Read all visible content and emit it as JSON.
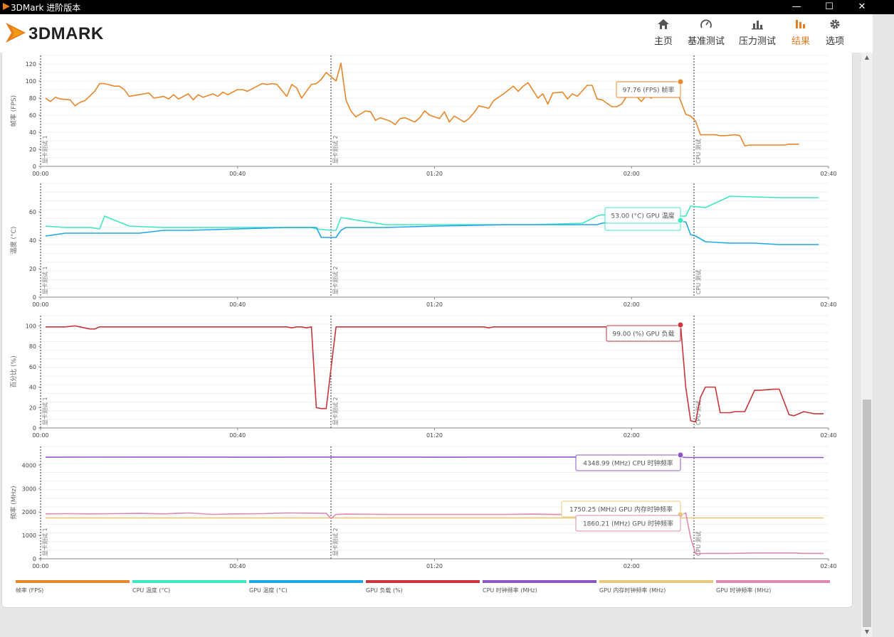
{
  "titlebar": {
    "title": "3DMark 进阶版本"
  },
  "logo": {
    "text": "3DMARK"
  },
  "nav": [
    {
      "label": "主页",
      "icon": "home-icon",
      "active": false
    },
    {
      "label": "基准测试",
      "icon": "gauge-icon",
      "active": false
    },
    {
      "label": "压力测试",
      "icon": "bar-chart-icon",
      "active": false
    },
    {
      "label": "结果",
      "icon": "results-icon",
      "active": true
    },
    {
      "label": "选项",
      "icon": "gear-icon",
      "active": false
    }
  ],
  "colors": {
    "accent": "#e67e22",
    "fps": "#e8862a",
    "cpu_temp": "#3ee8c0",
    "gpu_temp": "#1ea7e8",
    "gpu_load": "#c8353a",
    "cpu_clock": "#8e55c8",
    "gpu_mem_clock": "#e8c87a",
    "gpu_clock": "#e088b0"
  },
  "markers": [
    "显卡测试 1",
    "显卡测试 2",
    "CPU 测试"
  ],
  "x_ticks": [
    "00:00",
    "00:40",
    "01:20",
    "02:00",
    "02:40"
  ],
  "charts": [
    {
      "name": "fps",
      "ylabel": "帧率 (FPS)",
      "yticks": [
        "0",
        "20",
        "40",
        "60",
        "80",
        "100",
        "120"
      ],
      "tooltips": [
        {
          "text": "97.76 (FPS) 帧率"
        }
      ]
    },
    {
      "name": "temperature",
      "ylabel": "温度 (°C)",
      "yticks": [
        "0",
        "20",
        "40",
        "60"
      ],
      "tooltips": [
        {
          "text": "53.00 (°C) GPU 温度"
        }
      ]
    },
    {
      "name": "percent",
      "ylabel": "百分比 (%)",
      "yticks": [
        "0",
        "20",
        "40",
        "60",
        "80",
        "100"
      ],
      "tooltips": [
        {
          "text": "99.00 (%) GPU 负载"
        }
      ]
    },
    {
      "name": "frequency",
      "ylabel": "频率 (MHz)",
      "yticks": [
        "0",
        "1000",
        "2000",
        "3000",
        "4000"
      ],
      "tooltips": [
        {
          "text": "4348.99 (MHz) CPU 时钟频率"
        },
        {
          "text": "1750.25 (MHz) GPU 内存时钟频率"
        },
        {
          "text": "1860.21 (MHz) GPU 时钟频率"
        }
      ]
    }
  ],
  "chart_data": [
    {
      "type": "line",
      "x_unit": "seconds",
      "xlim": [
        0,
        160
      ],
      "ylabel": "帧率 (FPS)",
      "ylim": [
        0,
        130
      ],
      "series": [
        {
          "name": "帧率 (FPS)",
          "x": [
            1,
            2,
            3,
            4,
            6,
            7,
            8,
            9,
            11,
            12,
            13,
            15,
            16,
            17,
            18,
            20,
            21,
            22,
            23,
            25,
            26,
            27,
            28,
            30,
            31,
            32,
            33,
            35,
            36,
            37,
            38,
            40,
            41,
            42,
            43,
            45,
            46,
            47,
            48,
            50,
            51,
            52,
            53,
            55,
            56,
            57,
            58,
            60,
            61,
            62,
            63,
            64,
            66,
            67,
            68,
            69,
            71,
            72,
            73,
            74,
            76,
            77,
            78,
            79,
            81,
            82,
            83,
            84,
            86,
            87,
            88,
            89,
            91,
            92,
            93,
            94,
            96,
            97,
            98,
            99,
            101,
            102,
            103,
            104,
            106,
            107,
            108,
            109,
            111,
            112,
            113,
            114,
            116,
            117,
            118,
            119,
            121,
            122,
            123,
            124,
            126,
            127,
            128,
            129,
            131,
            132,
            133,
            134,
            136,
            137,
            138,
            139,
            141,
            142,
            143,
            144,
            146,
            147,
            148,
            149,
            151,
            152,
            153,
            154
          ],
          "y": [
            80,
            76,
            81,
            79,
            78,
            71,
            75,
            77,
            88,
            97,
            97,
            94,
            94,
            90,
            82,
            84,
            85,
            86,
            80,
            82,
            79,
            84,
            79,
            85,
            78,
            84,
            81,
            85,
            82,
            87,
            84,
            90,
            90,
            88,
            91,
            97,
            96,
            97,
            96,
            82,
            96,
            92,
            80,
            96,
            97,
            102,
            110,
            100,
            121,
            78,
            65,
            58,
            65,
            64,
            54,
            57,
            53,
            49,
            56,
            57,
            52,
            57,
            65,
            60,
            56,
            64,
            52,
            59,
            52,
            56,
            63,
            71,
            68,
            77,
            81,
            85,
            94,
            88,
            94,
            98,
            80,
            85,
            73,
            86,
            87,
            79,
            85,
            82,
            95,
            95,
            79,
            78,
            70,
            70,
            73,
            82,
            82,
            76,
            83,
            80,
            90,
            97.76,
            94,
            92,
            61,
            59,
            53,
            37,
            37,
            37,
            36,
            36,
            37,
            36,
            24,
            25,
            25,
            25,
            25,
            25,
            25,
            26,
            26,
            26
          ]
        }
      ]
    },
    {
      "type": "line",
      "x_unit": "seconds",
      "xlim": [
        0,
        160
      ],
      "ylabel": "温度 (°C)",
      "ylim": [
        0,
        80
      ],
      "series": [
        {
          "name": "CPU 温度 (°C)",
          "x": [
            1,
            5,
            10,
            12,
            13,
            18,
            25,
            40,
            55,
            56,
            59,
            60,
            61,
            70,
            80,
            90,
            93,
            94,
            96,
            100,
            110,
            113,
            114,
            116,
            120,
            130,
            131,
            132,
            135,
            140,
            150,
            158
          ],
          "y": [
            50,
            49,
            49,
            48,
            57,
            50,
            49,
            49,
            49,
            48,
            47,
            47,
            56,
            51,
            51,
            51,
            51,
            51,
            51,
            51,
            52,
            57,
            58,
            57,
            57,
            57,
            57,
            64,
            63,
            71,
            70,
            70
          ]
        },
        {
          "name": "GPU 温度 (°C)",
          "x": [
            1,
            5,
            10,
            12,
            20,
            25,
            30,
            40,
            50,
            56,
            57,
            59,
            60,
            61,
            62,
            70,
            80,
            95,
            100,
            108,
            113,
            114,
            116,
            120,
            125,
            128,
            130,
            131,
            132,
            133,
            135,
            140,
            145,
            150,
            158
          ],
          "y": [
            43,
            45,
            45,
            45,
            45,
            47,
            47,
            48,
            49,
            49,
            42,
            42,
            42,
            47,
            49,
            49,
            50,
            51,
            51,
            51,
            51,
            52,
            53,
            52,
            53,
            53,
            53,
            53,
            44,
            43,
            39,
            38,
            38,
            37,
            37
          ]
        }
      ]
    },
    {
      "type": "line",
      "x_unit": "seconds",
      "xlim": [
        0,
        160
      ],
      "ylabel": "百分比 (%)",
      "ylim": [
        0,
        110
      ],
      "series": [
        {
          "name": "GPU 负载 (%)",
          "x": [
            1,
            5,
            7,
            8,
            10,
            11,
            12,
            13,
            15,
            20,
            40,
            50,
            51,
            52,
            53,
            54,
            55,
            56,
            57,
            58,
            60,
            62,
            80,
            90,
            91,
            92,
            93,
            95,
            100,
            129,
            130,
            131,
            132,
            133,
            134,
            135,
            137,
            138,
            140,
            141,
            143,
            145,
            146,
            149,
            150,
            152,
            153,
            155,
            157,
            159
          ],
          "y": [
            99,
            99,
            100,
            99,
            97,
            97,
            99,
            99,
            99,
            99,
            99,
            99,
            98,
            99,
            99,
            98,
            99,
            20,
            19,
            19,
            99,
            99,
            99,
            99,
            98,
            99,
            99,
            99,
            99,
            99,
            99,
            40,
            7,
            6,
            30,
            40,
            40,
            15,
            15,
            16,
            16,
            37,
            37,
            38,
            38,
            13,
            12,
            16,
            14,
            14
          ]
        }
      ]
    },
    {
      "type": "line",
      "x_unit": "seconds",
      "xlim": [
        0,
        160
      ],
      "ylabel": "频率 (MHz)",
      "ylim": [
        0,
        4800
      ],
      "series": [
        {
          "name": "CPU 时钟频率 (MHz)",
          "x": [
            1,
            20,
            40,
            60,
            80,
            100,
            130,
            131,
            159
          ],
          "y": [
            4340,
            4348,
            4340,
            4348,
            4340,
            4348,
            4349,
            4330,
            4330
          ]
        },
        {
          "name": "GPU 内存时钟频率 (MHz)",
          "x": [
            1,
            40,
            80,
            131,
            132,
            159
          ],
          "y": [
            1750,
            1750,
            1750,
            1750,
            1750,
            1750
          ]
        },
        {
          "name": "GPU 时钟频率 (MHz)",
          "x": [
            1,
            5,
            10,
            15,
            20,
            25,
            30,
            35,
            40,
            45,
            50,
            55,
            58,
            59,
            60,
            62,
            70,
            80,
            90,
            95,
            100,
            110,
            120,
            130,
            131,
            132,
            133,
            135,
            140,
            145,
            150,
            153,
            155,
            159
          ],
          "y": [
            1920,
            1930,
            1920,
            1930,
            1940,
            1920,
            1960,
            1900,
            1920,
            1930,
            1960,
            1950,
            1940,
            1720,
            1900,
            1910,
            1900,
            1900,
            1900,
            1900,
            1910,
            1880,
            1880,
            1860,
            1960,
            900,
            220,
            230,
            230,
            250,
            250,
            250,
            230,
            230
          ]
        }
      ]
    }
  ],
  "legend": [
    {
      "label": "帧率 (FPS)",
      "color": "#e8862a"
    },
    {
      "label": "CPU 温度 (°C)",
      "color": "#3ee8c0"
    },
    {
      "label": "GPU 温度 (°C)",
      "color": "#1ea7e8"
    },
    {
      "label": "GPU 负载 (%)",
      "color": "#c8353a"
    },
    {
      "label": "CPU 时钟频率 (MHz)",
      "color": "#8e55c8"
    },
    {
      "label": "GPU 内存时钟频率 (MHz)",
      "color": "#e8c87a"
    },
    {
      "label": "GPU 时钟频率 (MHz)",
      "color": "#e088b0"
    }
  ]
}
